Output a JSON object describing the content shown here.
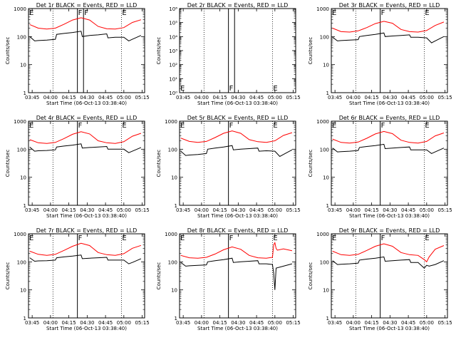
{
  "chart_data": [
    {
      "type": "line",
      "title": "Det 1r BLACK = Events, RED = LLD",
      "xlabel": "Start Time (06-Oct-13 03:38:40)",
      "ylabel": "Counts/sec",
      "yscale": "log",
      "ylim": [
        1,
        1000
      ],
      "xlim": [
        "03:42",
        "05:17"
      ],
      "x_ticks": [
        "03:45",
        "04:00",
        "04:15",
        "04:30",
        "04:45",
        "05:00",
        "05:15"
      ],
      "y_ticks": [
        "1",
        "10",
        "100",
        "1000"
      ],
      "markers": [
        {
          "label": "E",
          "x": "03:42"
        },
        {
          "label": "F",
          "x": "04:22"
        },
        {
          "label": "F",
          "x": "04:27"
        },
        {
          "label": "E",
          "x": "04:58"
        }
      ],
      "dotted_lines": [
        "04:02",
        "04:58"
      ],
      "series": [
        {
          "color": "#ff0000",
          "x": [
            "03:43",
            "03:50",
            "03:57",
            "04:04",
            "04:11",
            "04:18",
            "04:25",
            "04:32",
            "04:39",
            "04:46",
            "04:53",
            "05:00",
            "05:07",
            "05:14"
          ],
          "y": [
            270,
            200,
            185,
            200,
            275,
            390,
            470,
            390,
            230,
            190,
            185,
            210,
            320,
            400
          ]
        },
        {
          "color": "#000000",
          "x": [
            "03:43",
            "03:47",
            "03:50",
            "03:57",
            "04:04",
            "04:05",
            "04:11",
            "04:18",
            "04:25",
            "04:26",
            "04:32",
            "04:39",
            "04:46",
            "04:47",
            "04:53",
            "05:00",
            "05:04",
            "05:07",
            "05:14"
          ],
          "y": [
            100,
            70,
            72,
            75,
            80,
            120,
            130,
            140,
            155,
            100,
            110,
            115,
            125,
            90,
            95,
            95,
            70,
            80,
            110
          ]
        }
      ]
    },
    {
      "type": "line",
      "title": "Det 2r BLACK = Events, RED = LLD",
      "xlabel": "Start Time (06-Oct-13 03:38:40)",
      "ylabel": "Counts/sec",
      "yscale": "log",
      "ylim": [
        1,
        1000000
      ],
      "xlim": [
        "03:42",
        "05:17"
      ],
      "x_ticks": [
        "03:45",
        "04:00",
        "04:15",
        "04:30",
        "04:45",
        "05:00",
        "05:15"
      ],
      "y_ticks": [
        "10⁰",
        "10¹",
        "10²",
        "10³",
        "10⁴",
        "10⁵",
        "10⁶"
      ],
      "markers": [
        {
          "label": "E",
          "x": "03:42"
        },
        {
          "label": "F",
          "x": "04:22"
        },
        {
          "label": "E",
          "x": "04:58"
        }
      ],
      "solid_lines": [
        "04:22",
        "04:27"
      ],
      "dotted_lines": [
        "04:02",
        "04:58"
      ],
      "series": []
    },
    {
      "type": "line",
      "title": "Det 3r BLACK = Events, RED = LLD",
      "xlabel": "Start Time (06-Oct-13 03:38:40)",
      "ylabel": "Counts/sec",
      "yscale": "log",
      "ylim": [
        1,
        1000
      ],
      "xlim": [
        "03:42",
        "05:17"
      ],
      "x_ticks": [
        "03:45",
        "04:00",
        "04:15",
        "04:30",
        "04:45",
        "05:00",
        "05:15"
      ],
      "y_ticks": [
        "1",
        "10",
        "100",
        "1000"
      ],
      "markers": [
        {
          "label": "E",
          "x": "03:42"
        },
        {
          "label": "F",
          "x": "04:22"
        },
        {
          "label": "E",
          "x": "04:58"
        }
      ],
      "dotted_lines": [
        "04:02",
        "04:58"
      ],
      "series": [
        {
          "color": "#ff0000",
          "x": [
            "03:43",
            "03:50",
            "03:57",
            "04:04",
            "04:11",
            "04:18",
            "04:25",
            "04:32",
            "04:39",
            "04:46",
            "04:53",
            "05:00",
            "05:07",
            "05:14"
          ],
          "y": [
            200,
            150,
            145,
            160,
            210,
            290,
            350,
            300,
            180,
            150,
            145,
            165,
            250,
            330
          ]
        },
        {
          "color": "#000000",
          "x": [
            "03:43",
            "03:47",
            "03:50",
            "03:57",
            "04:04",
            "04:05",
            "04:11",
            "04:18",
            "04:25",
            "04:26",
            "04:32",
            "04:39",
            "04:46",
            "04:47",
            "04:53",
            "05:00",
            "05:04",
            "05:07",
            "05:14"
          ],
          "y": [
            95,
            70,
            72,
            75,
            78,
            100,
            110,
            120,
            135,
            100,
            105,
            110,
            115,
            95,
            95,
            90,
            60,
            70,
            100
          ]
        }
      ]
    },
    {
      "type": "line",
      "title": "Det 4r BLACK = Events, RED = LLD",
      "xlabel": "Start Time (06-Oct-13 03:38:40)",
      "ylabel": "Counts/sec",
      "yscale": "log",
      "ylim": [
        1,
        1000
      ],
      "xlim": [
        "03:42",
        "05:17"
      ],
      "x_ticks": [
        "03:45",
        "04:00",
        "04:15",
        "04:30",
        "04:45",
        "05:00",
        "05:15"
      ],
      "y_ticks": [
        "1",
        "10",
        "100",
        "1000"
      ],
      "markers": [
        {
          "label": "E",
          "x": "03:42"
        },
        {
          "label": "F",
          "x": "04:22"
        },
        {
          "label": "E",
          "x": "04:58"
        }
      ],
      "dotted_lines": [
        "04:02",
        "04:58"
      ],
      "series": [
        {
          "color": "#ff0000",
          "x": [
            "03:43",
            "03:50",
            "03:57",
            "04:04",
            "04:11",
            "04:18",
            "04:25",
            "04:32",
            "04:39",
            "04:46",
            "04:53",
            "05:00",
            "05:07",
            "05:14"
          ],
          "y": [
            220,
            170,
            160,
            175,
            240,
            340,
            420,
            350,
            200,
            170,
            160,
            185,
            290,
            370
          ]
        },
        {
          "color": "#000000",
          "x": [
            "03:43",
            "03:47",
            "03:50",
            "03:57",
            "04:04",
            "04:05",
            "04:11",
            "04:18",
            "04:25",
            "04:26",
            "04:32",
            "04:39",
            "04:46",
            "04:47",
            "04:53",
            "05:00",
            "05:04",
            "05:07",
            "05:14"
          ],
          "y": [
            120,
            85,
            88,
            90,
            95,
            120,
            130,
            140,
            155,
            110,
            115,
            120,
            125,
            100,
            100,
            100,
            75,
            85,
            115
          ]
        }
      ]
    },
    {
      "type": "line",
      "title": "Det 5r BLACK = Events, RED = LLD",
      "xlabel": "Start Time (06-Oct-13 03:38:40)",
      "ylabel": "Counts/sec",
      "yscale": "log",
      "ylim": [
        1,
        1000
      ],
      "xlim": [
        "03:42",
        "05:17"
      ],
      "x_ticks": [
        "03:45",
        "04:00",
        "04:15",
        "04:30",
        "04:45",
        "05:00",
        "05:15"
      ],
      "y_ticks": [
        "1",
        "10",
        "100",
        "1000"
      ],
      "markers": [
        {
          "label": "E",
          "x": "03:42"
        },
        {
          "label": "F",
          "x": "04:22"
        },
        {
          "label": "E",
          "x": "04:58"
        }
      ],
      "dotted_lines": [
        "04:02",
        "04:58"
      ],
      "series": [
        {
          "color": "#ff0000",
          "x": [
            "03:43",
            "03:50",
            "03:57",
            "04:04",
            "04:11",
            "04:18",
            "04:25",
            "04:32",
            "04:39",
            "04:46",
            "04:53",
            "05:00",
            "05:07",
            "05:14"
          ],
          "y": [
            250,
            190,
            175,
            190,
            260,
            370,
            450,
            370,
            220,
            185,
            175,
            200,
            310,
            390
          ]
        },
        {
          "color": "#000000",
          "x": [
            "03:43",
            "03:47",
            "03:50",
            "03:57",
            "04:04",
            "04:05",
            "04:11",
            "04:18",
            "04:25",
            "04:26",
            "04:32",
            "04:39",
            "04:46",
            "04:47",
            "04:53",
            "05:00",
            "05:04",
            "05:07",
            "05:14"
          ],
          "y": [
            85,
            60,
            62,
            65,
            70,
            100,
            110,
            120,
            135,
            95,
            100,
            105,
            110,
            85,
            88,
            85,
            55,
            65,
            95
          ]
        }
      ]
    },
    {
      "type": "line",
      "title": "Det 6r BLACK = Events, RED = LLD",
      "xlabel": "Start Time (06-Oct-13 03:38:40)",
      "ylabel": "Counts/sec",
      "yscale": "log",
      "ylim": [
        1,
        1000
      ],
      "xlim": [
        "03:42",
        "05:17"
      ],
      "x_ticks": [
        "03:45",
        "04:00",
        "04:15",
        "04:30",
        "04:45",
        "05:00",
        "05:15"
      ],
      "y_ticks": [
        "1",
        "10",
        "100",
        "1000"
      ],
      "markers": [
        {
          "label": "E",
          "x": "03:42"
        },
        {
          "label": "F",
          "x": "04:22"
        },
        {
          "label": "E",
          "x": "04:58"
        }
      ],
      "dotted_lines": [
        "04:02",
        "04:58"
      ],
      "series": [
        {
          "color": "#ff0000",
          "x": [
            "03:43",
            "03:50",
            "03:57",
            "04:04",
            "04:11",
            "04:18",
            "04:25",
            "04:32",
            "04:39",
            "04:46",
            "04:53",
            "05:00",
            "05:07",
            "05:14"
          ],
          "y": [
            230,
            175,
            165,
            180,
            245,
            350,
            430,
            360,
            210,
            175,
            165,
            190,
            300,
            380
          ]
        },
        {
          "color": "#000000",
          "x": [
            "03:43",
            "03:47",
            "03:50",
            "03:57",
            "04:04",
            "04:05",
            "04:11",
            "04:18",
            "04:25",
            "04:26",
            "04:32",
            "04:39",
            "04:46",
            "04:47",
            "04:53",
            "05:00",
            "05:04",
            "05:07",
            "05:14"
          ],
          "y": [
            110,
            80,
            82,
            85,
            90,
            115,
            125,
            135,
            150,
            105,
            110,
            115,
            120,
            95,
            95,
            95,
            70,
            80,
            110
          ]
        }
      ]
    },
    {
      "type": "line",
      "title": "Det 7r BLACK = Events, RED = LLD",
      "xlabel": "Start Time (06-Oct-13 03:38:40)",
      "ylabel": "Counts/sec",
      "yscale": "log",
      "ylim": [
        1,
        1000
      ],
      "xlim": [
        "03:42",
        "05:17"
      ],
      "x_ticks": [
        "03:45",
        "04:00",
        "04:15",
        "04:30",
        "04:45",
        "05:00",
        "05:15"
      ],
      "y_ticks": [
        "1",
        "10",
        "100",
        "1000"
      ],
      "markers": [
        {
          "label": "E",
          "x": "03:42"
        },
        {
          "label": "F",
          "x": "04:22"
        },
        {
          "label": "E",
          "x": "04:58"
        }
      ],
      "dotted_lines": [
        "04:02",
        "04:58"
      ],
      "series": [
        {
          "color": "#ff0000",
          "x": [
            "03:43",
            "03:50",
            "03:57",
            "04:04",
            "04:11",
            "04:18",
            "04:25",
            "04:32",
            "04:39",
            "04:46",
            "04:53",
            "05:00",
            "05:07",
            "05:14"
          ],
          "y": [
            240,
            185,
            170,
            185,
            255,
            360,
            460,
            380,
            215,
            180,
            170,
            195,
            305,
            385
          ]
        },
        {
          "color": "#000000",
          "x": [
            "03:43",
            "03:47",
            "03:50",
            "03:57",
            "04:04",
            "04:05",
            "04:11",
            "04:18",
            "04:25",
            "04:26",
            "04:32",
            "04:39",
            "04:46",
            "04:47",
            "04:53",
            "05:00",
            "05:04",
            "05:07",
            "05:14"
          ],
          "y": [
            140,
            105,
            108,
            110,
            115,
            140,
            150,
            160,
            175,
            130,
            135,
            140,
            145,
            115,
            115,
            115,
            85,
            95,
            130
          ]
        }
      ]
    },
    {
      "type": "line",
      "title": "Det 8r BLACK = Events, RED = LLD",
      "xlabel": "Start Time (06-Oct-13 03:38:40)",
      "ylabel": "Counts/sec",
      "yscale": "log",
      "ylim": [
        1,
        1000
      ],
      "xlim": [
        "03:42",
        "05:17"
      ],
      "x_ticks": [
        "03:45",
        "04:00",
        "04:15",
        "04:30",
        "04:45",
        "05:00",
        "05:15"
      ],
      "y_ticks": [
        "1",
        "10",
        "100",
        "1000"
      ],
      "markers": [
        {
          "label": "E",
          "x": "03:42"
        },
        {
          "label": "F",
          "x": "04:22"
        },
        {
          "label": "E",
          "x": "04:58"
        }
      ],
      "dotted_lines": [
        "04:02",
        "04:58"
      ],
      "series": [
        {
          "color": "#ff0000",
          "x": [
            "03:43",
            "03:50",
            "03:57",
            "04:04",
            "04:11",
            "04:18",
            "04:25",
            "04:32",
            "04:39",
            "04:46",
            "04:53",
            "04:58",
            "04:59",
            "05:00",
            "05:01",
            "05:02",
            "05:07",
            "05:14"
          ],
          "y": [
            170,
            140,
            135,
            145,
            190,
            270,
            340,
            280,
            170,
            140,
            135,
            145,
            400,
            480,
            300,
            260,
            290,
            250
          ]
        },
        {
          "color": "#000000",
          "x": [
            "03:43",
            "03:47",
            "03:50",
            "03:57",
            "04:04",
            "04:05",
            "04:11",
            "04:18",
            "04:25",
            "04:26",
            "04:32",
            "04:39",
            "04:46",
            "04:47",
            "04:53",
            "04:58",
            "04:59",
            "05:00",
            "05:01",
            "05:07",
            "05:14"
          ],
          "y": [
            95,
            70,
            72,
            75,
            78,
            100,
            110,
            120,
            135,
            95,
            100,
            105,
            110,
            85,
            85,
            80,
            40,
            10,
            60,
            70,
            85
          ]
        }
      ]
    },
    {
      "type": "line",
      "title": "Det 9r BLACK = Events, RED = LLD",
      "xlabel": "Start Time (06-Oct-13 03:38:40)",
      "ylabel": "Counts/sec",
      "yscale": "log",
      "ylim": [
        1,
        1000
      ],
      "xlim": [
        "03:42",
        "05:17"
      ],
      "x_ticks": [
        "03:45",
        "04:00",
        "04:15",
        "04:30",
        "04:45",
        "05:00",
        "05:15"
      ],
      "y_ticks": [
        "1",
        "10",
        "100",
        "1000"
      ],
      "markers": [
        {
          "label": "E",
          "x": "03:42"
        },
        {
          "label": "F",
          "x": "04:22"
        },
        {
          "label": "E",
          "x": "04:58"
        }
      ],
      "dotted_lines": [
        "04:02",
        "04:58"
      ],
      "series": [
        {
          "color": "#ff0000",
          "x": [
            "03:43",
            "03:50",
            "03:57",
            "04:04",
            "04:11",
            "04:18",
            "04:25",
            "04:32",
            "04:39",
            "04:46",
            "04:53",
            "04:58",
            "05:00",
            "05:02",
            "05:07",
            "05:14"
          ],
          "y": [
            240,
            180,
            170,
            185,
            255,
            360,
            440,
            360,
            215,
            180,
            170,
            120,
            100,
            150,
            280,
            380
          ]
        },
        {
          "color": "#000000",
          "x": [
            "03:43",
            "03:47",
            "03:50",
            "03:57",
            "04:04",
            "04:05",
            "04:11",
            "04:18",
            "04:25",
            "04:26",
            "04:32",
            "04:39",
            "04:46",
            "04:47",
            "04:53",
            "04:58",
            "05:00",
            "05:02",
            "05:07",
            "05:14"
          ],
          "y": [
            110,
            80,
            82,
            85,
            90,
            115,
            125,
            135,
            150,
            105,
            110,
            115,
            120,
            95,
            95,
            60,
            75,
            70,
            80,
            110
          ]
        }
      ]
    }
  ]
}
